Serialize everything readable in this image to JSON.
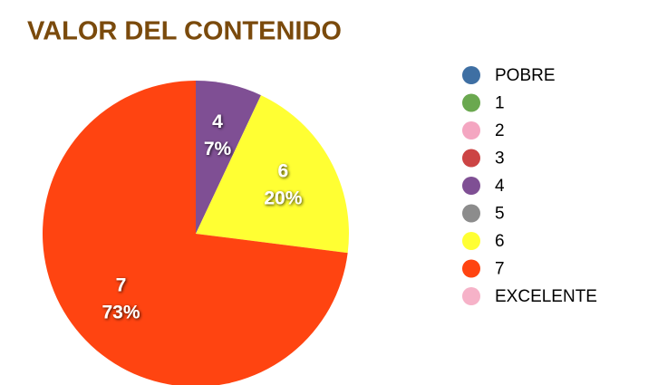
{
  "chart_data": {
    "type": "pie",
    "title": "VALOR DEL CONTENIDO",
    "categories": [
      "POBRE",
      "1",
      "2",
      "3",
      "4",
      "5",
      "6",
      "7",
      "EXCELENTE"
    ],
    "values": [
      0,
      0,
      0,
      0,
      7,
      0,
      20,
      73,
      0
    ],
    "value_labels": [
      null,
      null,
      null,
      null,
      "7%",
      null,
      "20%",
      "73%",
      null
    ],
    "colors": [
      "#3e6fa3",
      "#6aa84f",
      "#f4a6c1",
      "#cc4444",
      "#7f4f94",
      "#8c8c8c",
      "#ffff33",
      "#ff4411",
      "#f6b2c8"
    ],
    "legend": "right"
  }
}
